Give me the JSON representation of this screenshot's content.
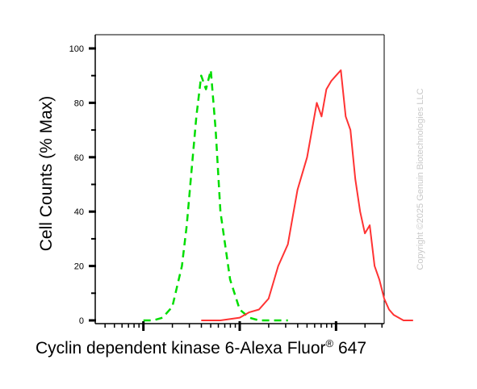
{
  "chart_data": {
    "type": "line",
    "title": "",
    "xlabel_main": "Cyclin dependent kinase 6-Alexa Fluor",
    "xlabel_sup": "®",
    "xlabel_tail": " 647",
    "ylabel": "Cell Counts (% Max)",
    "ylim": [
      0,
      100
    ],
    "yticks": [
      "0",
      "20",
      "40",
      "60",
      "80",
      "100"
    ],
    "xscale": "log",
    "xlim_decades": [
      -0.5,
      2.5
    ],
    "grid": false,
    "series": [
      {
        "style": "dashed",
        "color": "#00dd00",
        "x": [
          0.0,
          0.1,
          0.2,
          0.3,
          0.4,
          0.45,
          0.5,
          0.55,
          0.6,
          0.65,
          0.7,
          0.75,
          0.8,
          0.9,
          1.0,
          1.1,
          1.2,
          1.3,
          1.4,
          1.5
        ],
        "y": [
          0,
          0,
          1,
          5,
          20,
          35,
          55,
          75,
          90,
          85,
          92,
          70,
          40,
          15,
          4,
          1,
          0,
          0,
          0,
          0
        ]
      },
      {
        "style": "solid",
        "color": "#ff3333",
        "x": [
          0.6,
          0.8,
          1.0,
          1.1,
          1.2,
          1.3,
          1.4,
          1.5,
          1.55,
          1.6,
          1.7,
          1.75,
          1.8,
          1.85,
          1.9,
          1.95,
          2.0,
          2.05,
          2.1,
          2.15,
          2.2,
          2.25,
          2.3,
          2.35,
          2.4,
          2.45,
          2.5,
          2.55,
          2.6,
          2.7,
          2.8
        ],
        "y": [
          0,
          0,
          1,
          3,
          4,
          8,
          20,
          28,
          38,
          48,
          60,
          70,
          80,
          75,
          85,
          88,
          90,
          92,
          75,
          70,
          52,
          40,
          32,
          35,
          20,
          15,
          8,
          4,
          2,
          0,
          0
        ]
      }
    ]
  },
  "watermark": "Copyright ©2025 Genuin Biotechnologies LLC"
}
